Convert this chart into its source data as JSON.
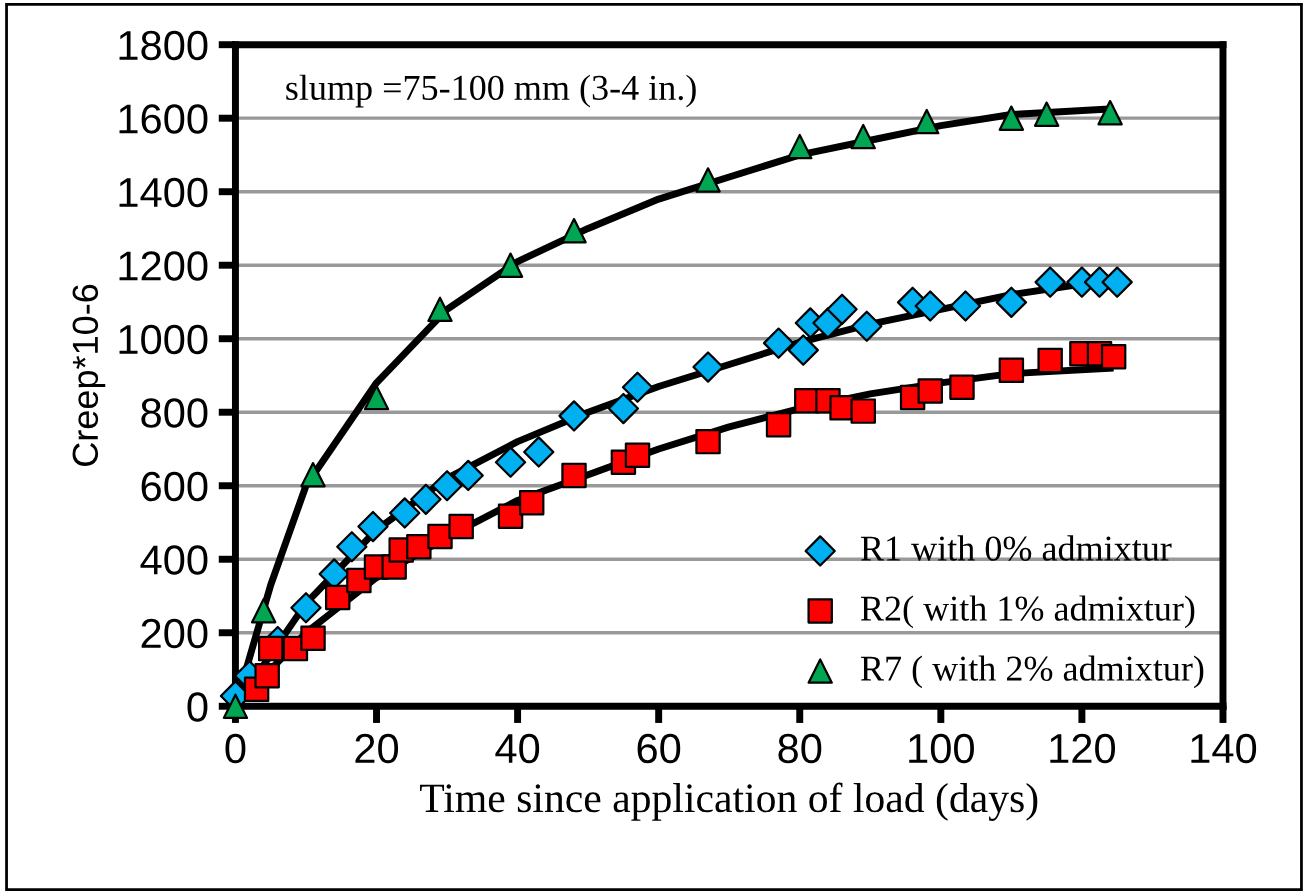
{
  "chart_data": {
    "type": "scatter",
    "xlabel": "Time since application of load (days)",
    "ylabel": "Creep*10-6",
    "annotations": [
      "slump =75-100 mm (3-4 in.)"
    ],
    "xlim": [
      0,
      140
    ],
    "xticks": [
      0,
      20,
      40,
      60,
      80,
      100,
      120,
      140
    ],
    "ylim": [
      0,
      1800
    ],
    "yticks": [
      0,
      200,
      400,
      600,
      800,
      1000,
      1200,
      1400,
      1600,
      1800
    ],
    "grid": "y",
    "legend": "bottom right",
    "series": [
      {
        "name": "R1 with 0% admixtur",
        "marker": "diamond",
        "color": "#00b0f0",
        "x": [
          0,
          2,
          6,
          10,
          14,
          16.5,
          19.5,
          24,
          27,
          30,
          33,
          39,
          43,
          48,
          55,
          57,
          67,
          77,
          80.5,
          81.5,
          84,
          86,
          89.5,
          96,
          98.5,
          103.5,
          110,
          115.5,
          120,
          122.5,
          125
        ],
        "values": [
          28,
          83,
          176,
          268,
          360,
          434,
          489,
          526,
          563,
          600,
          628,
          664,
          692,
          790,
          810,
          868,
          923,
          988,
          969,
          1043,
          1043,
          1080,
          1034,
          1099,
          1089,
          1089,
          1099,
          1154,
          1154,
          1154,
          1154
        ]
      },
      {
        "name": "R2( with 1% admixtur)",
        "marker": "square",
        "color": "#ff0000",
        "x": [
          3,
          4.5,
          5,
          8.5,
          11,
          14.5,
          17.5,
          20,
          22.5,
          23.5,
          26,
          29,
          32,
          39,
          42,
          48,
          55,
          57,
          67,
          77,
          81,
          84,
          86,
          89,
          96,
          98.5,
          103,
          110,
          115.5,
          120,
          122.5,
          124.5
        ],
        "values": [
          46,
          83,
          157,
          157,
          185,
          296,
          342,
          379,
          379,
          425,
          434,
          462,
          489,
          517,
          554,
          628,
          664,
          683,
          720,
          766,
          831,
          831,
          812,
          803,
          840,
          858,
          868,
          914,
          941,
          959,
          959,
          951
        ]
      },
      {
        "name": "R7 ( with 2% admixtur)",
        "marker": "triangle",
        "color": "#00a651",
        "x": [
          0,
          4,
          11,
          20,
          29,
          39,
          48,
          67,
          80,
          89,
          98,
          110,
          115,
          124
        ],
        "values": [
          0,
          260,
          630,
          840,
          1080,
          1200,
          1294,
          1432,
          1523,
          1550,
          1591,
          1600,
          1611,
          1615
        ]
      },
      {
        "type": "line",
        "marker": "none",
        "color": "#000000",
        "x": [
          0,
          10,
          20,
          30,
          40,
          50,
          60,
          70,
          80,
          90,
          100,
          110,
          124
        ],
        "values": [
          0,
          280,
          480,
          620,
          720,
          800,
          870,
          930,
          990,
          1040,
          1080,
          1120,
          1160
        ]
      },
      {
        "type": "line",
        "marker": "none",
        "color": "#000000",
        "x": [
          0,
          10,
          20,
          30,
          40,
          50,
          60,
          70,
          80,
          90,
          100,
          110,
          124
        ],
        "values": [
          0,
          200,
          350,
          460,
          560,
          630,
          700,
          760,
          810,
          850,
          880,
          905,
          920
        ]
      },
      {
        "type": "line",
        "marker": "none",
        "color": "#000000",
        "x": [
          0,
          5,
          10,
          20,
          30,
          40,
          50,
          60,
          70,
          80,
          90,
          100,
          110,
          124
        ],
        "values": [
          0,
          330,
          600,
          880,
          1080,
          1210,
          1300,
          1380,
          1440,
          1500,
          1540,
          1580,
          1610,
          1625
        ]
      }
    ]
  }
}
